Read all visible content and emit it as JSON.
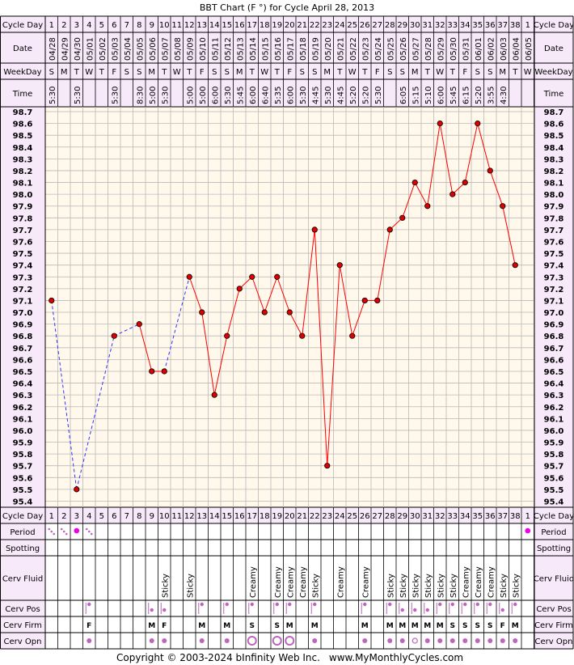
{
  "title": "BBT Chart (F °) for Cycle April 28, 2013",
  "footer": {
    "copyright": "Copyright © 2003-2024 bInfinity Web Inc.",
    "site": "www.MyMonthlyCycles.com"
  },
  "row_labels": {
    "cycle_day": "Cycle Day",
    "date": "Date",
    "weekday": "WeekDay",
    "time": "Time",
    "period": "Period",
    "spotting": "Spotting",
    "cerv_fluid": "Cerv Fluid",
    "cerv_pos": "Cerv Pos",
    "cerv_firm": "Cerv Firm",
    "cerv_opn": "Cerv Opn"
  },
  "colors": {
    "chart_bg": "#fff8eb",
    "header_bg": "#f7e8fa",
    "grid": "#b9b9b9",
    "border": "#000000",
    "line_solid": "#ff0000",
    "line_dashed": "#3333ff",
    "point_fill": "#dd0000",
    "marker": "#bb66bb",
    "period_dot": "#ee00ee"
  },
  "chart_data": {
    "type": "line",
    "ylim": [
      95.4,
      98.7
    ],
    "yticks": [
      "98.7",
      "98.6",
      "98.5",
      "98.4",
      "98.3",
      "98.2",
      "98.1",
      "98.0",
      "97.9",
      "97.8",
      "97.7",
      "97.6",
      "97.5",
      "97.4",
      "97.3",
      "97.2",
      "97.1",
      "97.0",
      "96.9",
      "96.8",
      "96.7",
      "96.6",
      "96.5",
      "96.4",
      "96.3",
      "96.2",
      "96.1",
      "96.0",
      "95.9",
      "95.8",
      "95.7",
      "95.6",
      "95.5",
      "95.4"
    ],
    "cycle_days": [
      "1",
      "2",
      "3",
      "4",
      "5",
      "6",
      "7",
      "8",
      "9",
      "10",
      "11",
      "12",
      "13",
      "14",
      "15",
      "16",
      "17",
      "18",
      "19",
      "20",
      "21",
      "22",
      "23",
      "24",
      "25",
      "26",
      "27",
      "28",
      "29",
      "30",
      "31",
      "32",
      "33",
      "34",
      "35",
      "36",
      "37",
      "38",
      "1"
    ],
    "dates": [
      "04/28",
      "04/29",
      "04/30",
      "05/01",
      "05/02",
      "05/03",
      "05/04",
      "05/05",
      "05/06",
      "05/07",
      "05/08",
      "05/09",
      "05/10",
      "05/11",
      "05/12",
      "05/13",
      "05/14",
      "05/15",
      "05/16",
      "05/17",
      "05/18",
      "05/19",
      "05/20",
      "05/21",
      "05/22",
      "05/23",
      "05/24",
      "05/25",
      "05/26",
      "05/27",
      "05/28",
      "05/29",
      "05/30",
      "05/31",
      "06/01",
      "06/02",
      "06/03",
      "06/04",
      "06/05"
    ],
    "weekdays": [
      "S",
      "M",
      "T",
      "W",
      "T",
      "F",
      "S",
      "S",
      "M",
      "T",
      "W",
      "T",
      "F",
      "S",
      "S",
      "M",
      "T",
      "W",
      "T",
      "F",
      "S",
      "S",
      "M",
      "T",
      "W",
      "T",
      "F",
      "S",
      "S",
      "M",
      "T",
      "W",
      "T",
      "F",
      "S",
      "S",
      "M",
      "T",
      "W"
    ],
    "times": [
      "5:30",
      "",
      "5:30",
      "",
      "",
      "5:30",
      "",
      "8:30",
      "5:00",
      "5:30",
      "",
      "5:00",
      "5:00",
      "6:00",
      "5:30",
      "5:45",
      "6:00",
      "6:40",
      "5:35",
      "6:00",
      "5:30",
      "4:45",
      "5:30",
      "4:45",
      "5:20",
      "5:20",
      "5:30",
      "",
      "6:05",
      "5:15",
      "5:10",
      "6:00",
      "5:45",
      "6:15",
      "5:20",
      "3:55",
      "4:30",
      "",
      ""
    ],
    "temps": [
      97.1,
      null,
      95.5,
      null,
      null,
      96.8,
      null,
      96.9,
      96.5,
      96.5,
      null,
      97.3,
      97.0,
      96.3,
      96.8,
      97.2,
      97.3,
      97.0,
      97.3,
      97.0,
      96.8,
      97.7,
      95.7,
      97.4,
      96.8,
      97.1,
      97.1,
      97.7,
      97.8,
      98.1,
      97.9,
      98.6,
      98.0,
      98.1,
      98.6,
      98.2,
      97.9,
      97.4,
      null
    ],
    "period": [
      "dots",
      "dots",
      "dot",
      "dots",
      "",
      "",
      "",
      "",
      "",
      "",
      "",
      "",
      "",
      "",
      "",
      "",
      "",
      "",
      "",
      "",
      "",
      "",
      "",
      "",
      "",
      "",
      "",
      "",
      "",
      "",
      "",
      "",
      "",
      "",
      "",
      "",
      "",
      "",
      "dot"
    ],
    "cerv_fluid": [
      "",
      "",
      "",
      "",
      "",
      "",
      "",
      "",
      "",
      "Sticky",
      "",
      "Sticky",
      "",
      "",
      "",
      "",
      "Creamy",
      "",
      "Creamy",
      "Creamy",
      "Creamy",
      "Sticky",
      "",
      "Creamy",
      "",
      "Creamy",
      "",
      "Sticky",
      "Sticky",
      "Sticky",
      "Sticky",
      "Sticky",
      "Sticky",
      "Creamy",
      "Creamy",
      "Creamy",
      "Sticky",
      "Sticky",
      ""
    ],
    "cerv_pos": [
      "",
      "",
      "",
      "hi",
      "",
      "",
      "",
      "",
      "lo",
      "lo",
      "",
      "",
      "hi",
      "",
      "hi",
      "",
      "hi",
      "",
      "hi",
      "hi",
      "",
      "hi",
      "",
      "",
      "",
      "hi",
      "",
      "hi",
      "lo",
      "lo",
      "lo",
      "hi",
      "hi",
      "hi",
      "hi",
      "hi",
      "lo",
      "hi",
      ""
    ],
    "cerv_firm": [
      "",
      "",
      "",
      "F",
      "",
      "",
      "",
      "",
      "M",
      "F",
      "",
      "",
      "M",
      "",
      "M",
      "",
      "S",
      "",
      "S",
      "M",
      "",
      "M",
      "",
      "",
      "",
      "M",
      "",
      "M",
      "M",
      "M",
      "M",
      "M",
      "S",
      "S",
      "S",
      "S",
      "F",
      "M",
      ""
    ],
    "cerv_opn": [
      "",
      "",
      "",
      "s",
      "",
      "",
      "",
      "",
      "s",
      "s",
      "",
      "",
      "s",
      "",
      "s",
      "",
      "L",
      "",
      "L",
      "L",
      "",
      "s",
      "",
      "",
      "",
      "s",
      "",
      "s",
      "s",
      "m",
      "s",
      "s",
      "s",
      "s",
      "s",
      "s",
      "s",
      "s",
      ""
    ]
  }
}
